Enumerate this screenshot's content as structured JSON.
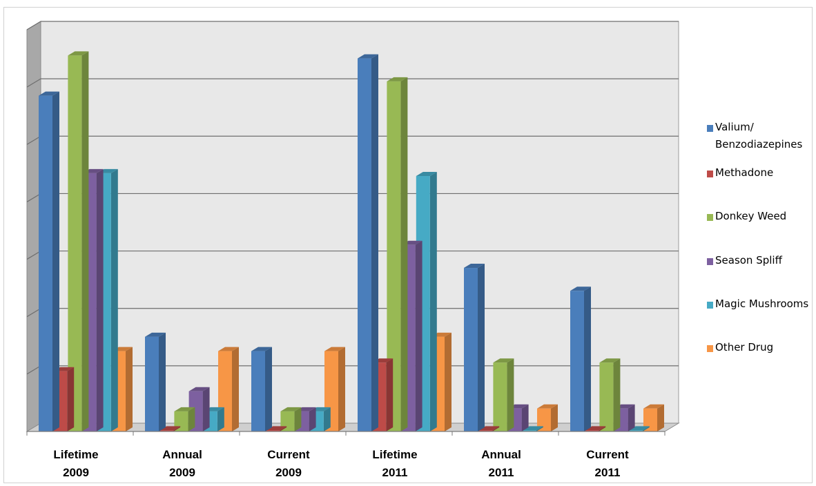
{
  "chart_data": {
    "type": "bar",
    "title": "",
    "xlabel": "",
    "ylabel": "",
    "ylim": [
      0,
      7
    ],
    "grid": true,
    "legend_position": "right",
    "categories": [
      "Lifetime 2009",
      "Annual 2009",
      "Current 2009",
      "Lifetime 2011",
      "Annual 2011",
      "Current 2011"
    ],
    "category_lines": [
      [
        "Lifetime",
        "2009"
      ],
      [
        "Annual",
        "2009"
      ],
      [
        "Current",
        "2009"
      ],
      [
        "Lifetime",
        "2011"
      ],
      [
        "Annual",
        "2011"
      ],
      [
        "Current",
        "2011"
      ]
    ],
    "series": [
      {
        "name": "Valium/ Benzodiazepines",
        "legend_lines": [
          "Valium/",
          "Benzodiazepines"
        ],
        "color": "#4A7EBB",
        "values": [
          5.85,
          1.65,
          1.4,
          6.5,
          2.85,
          2.45
        ]
      },
      {
        "name": "Methadone",
        "legend_lines": [
          "Methadone"
        ],
        "color": "#BE4B48",
        "values": [
          1.05,
          0.02,
          0.02,
          1.2,
          0.02,
          0.02
        ]
      },
      {
        "name": "Donkey Weed",
        "legend_lines": [
          "Donkey Weed"
        ],
        "color": "#98B954",
        "values": [
          6.55,
          0.35,
          0.35,
          6.1,
          1.2,
          1.2
        ]
      },
      {
        "name": "Season Spliff",
        "legend_lines": [
          "Season Spliff"
        ],
        "color": "#7D60A0",
        "values": [
          4.5,
          0.7,
          0.35,
          3.25,
          0.4,
          0.4
        ]
      },
      {
        "name": "Magic Mushrooms",
        "legend_lines": [
          "Magic Mushrooms"
        ],
        "color": "#46AAC5",
        "values": [
          4.5,
          0.35,
          0.35,
          4.45,
          0.02,
          0.02
        ]
      },
      {
        "name": "Other Drug",
        "legend_lines": [
          "Other Drug"
        ],
        "color": "#F79646",
        "values": [
          1.4,
          1.4,
          1.4,
          1.65,
          0.4,
          0.4
        ]
      }
    ]
  }
}
